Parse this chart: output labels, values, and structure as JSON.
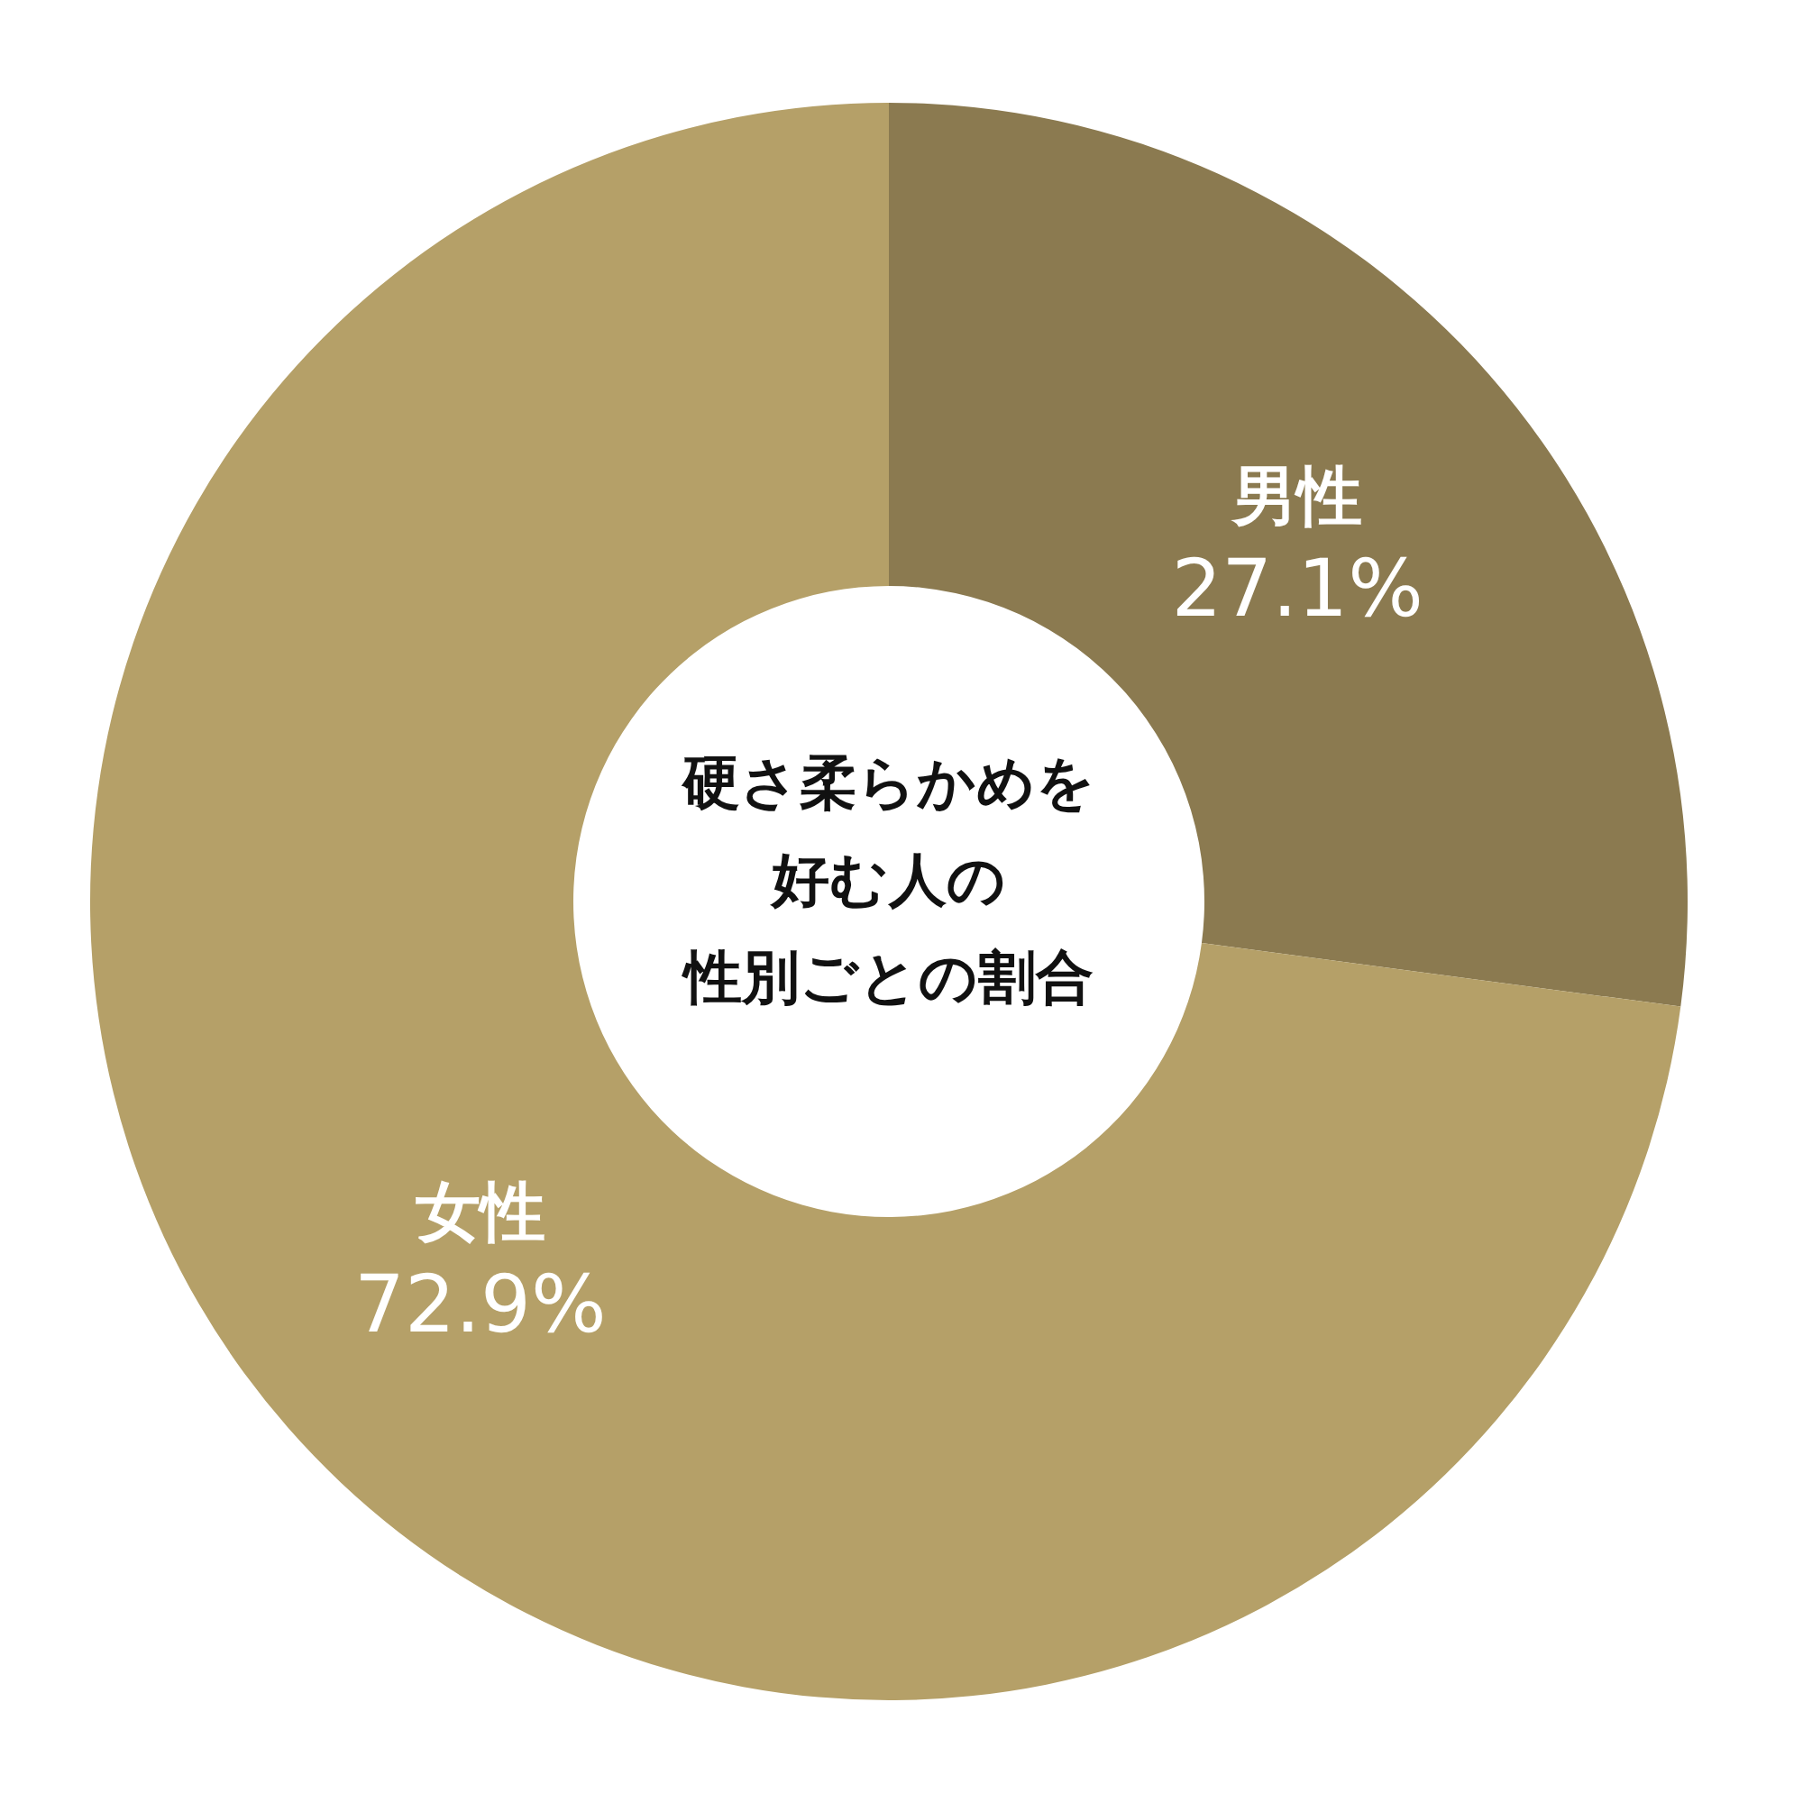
{
  "chart_data": {
    "type": "donut",
    "title": "硬さ柔らかめを好む人の性別ごとの割合",
    "categories": [
      "男性",
      "女性"
    ],
    "values": [
      27.1,
      72.9
    ],
    "value_labels": [
      "27.1%",
      "72.9%"
    ],
    "colors": [
      "#8b7a50",
      "#b5a068"
    ]
  }
}
